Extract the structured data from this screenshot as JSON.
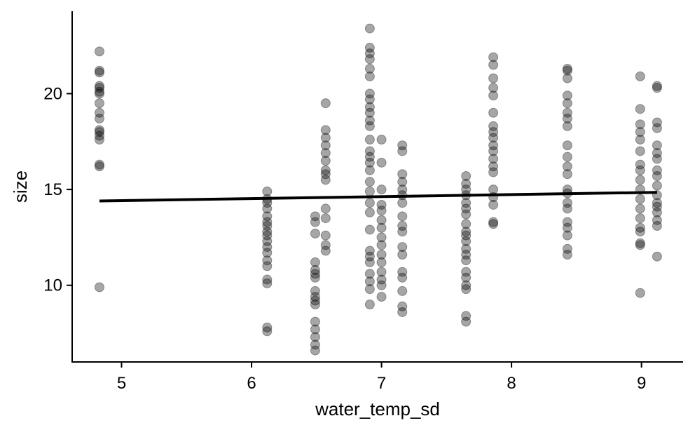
{
  "chart_data": {
    "type": "scatter",
    "title": "",
    "xlabel": "water_temp_sd",
    "ylabel": "size",
    "xlim": [
      4.62,
      9.32
    ],
    "ylim": [
      6.0,
      24.3
    ],
    "x_ticks": [
      5,
      6,
      7,
      8,
      9
    ],
    "y_ticks": [
      10,
      15,
      20
    ],
    "x_tick_labels": [
      "5",
      "6",
      "7",
      "8",
      "9"
    ],
    "y_tick_labels": [
      "10",
      "15",
      "20"
    ],
    "grid": false,
    "legend": "none",
    "point_color": "#000000",
    "point_alpha": 0.35,
    "groups": [
      {
        "x": 4.83,
        "values": [
          22.2,
          21.2,
          21.1,
          20.4,
          20.3,
          20.1,
          20.0,
          19.5,
          19.0,
          18.7,
          18.1,
          18.0,
          17.8,
          17.6,
          16.3,
          16.2,
          9.9
        ]
      },
      {
        "x": 6.12,
        "values": [
          14.9,
          14.5,
          14.3,
          14.0,
          13.6,
          13.3,
          13.1,
          12.8,
          12.6,
          12.3,
          12.0,
          11.7,
          11.3,
          11.0,
          10.3,
          10.1,
          7.8,
          7.6
        ]
      },
      {
        "x": 6.49,
        "values": [
          13.6,
          13.3,
          12.7,
          11.2,
          10.8,
          10.6,
          10.4,
          9.7,
          9.4,
          9.2,
          9.0,
          8.1,
          7.7,
          7.3,
          6.9,
          6.6
        ]
      },
      {
        "x": 6.57,
        "values": [
          19.5,
          18.1,
          17.7,
          17.3,
          16.9,
          16.5,
          16.0,
          15.8,
          15.5,
          14.0,
          13.5,
          12.6,
          12.1,
          11.8
        ]
      },
      {
        "x": 6.91,
        "values": [
          23.4,
          22.4,
          22.1,
          21.8,
          21.3,
          20.9,
          20.0,
          19.7,
          19.3,
          19.0,
          18.6,
          18.3,
          17.6,
          17.0,
          16.7,
          16.4,
          16.0,
          15.4,
          14.9,
          14.3,
          13.8,
          12.9,
          11.8,
          11.5,
          11.2,
          10.6,
          10.2,
          9.8,
          9.0
        ]
      },
      {
        "x": 7.0,
        "values": [
          17.6,
          16.4,
          15.0,
          14.2,
          13.9,
          13.4,
          13.0,
          12.5,
          12.1,
          11.6,
          11.2,
          10.7,
          10.3,
          10.0,
          9.4
        ]
      },
      {
        "x": 7.16,
        "values": [
          17.3,
          17.0,
          15.8,
          15.4,
          15.0,
          14.7,
          14.3,
          13.6,
          13.1,
          12.8,
          12.0,
          11.6,
          10.7,
          10.4,
          9.7,
          8.9,
          8.6
        ]
      },
      {
        "x": 7.65,
        "values": [
          15.7,
          15.3,
          15.0,
          14.7,
          14.3,
          14.0,
          13.7,
          13.2,
          12.8,
          12.6,
          12.3,
          11.9,
          11.6,
          11.3,
          10.7,
          10.4,
          10.0,
          9.8,
          8.4,
          8.1
        ]
      },
      {
        "x": 7.86,
        "values": [
          21.9,
          21.5,
          20.8,
          20.3,
          19.9,
          19.0,
          18.3,
          18.0,
          17.7,
          17.3,
          17.0,
          16.6,
          16.2,
          15.9,
          15.0,
          14.6,
          14.2,
          13.3,
          13.2
        ]
      },
      {
        "x": 8.43,
        "values": [
          21.3,
          21.2,
          20.8,
          19.9,
          19.5,
          19.0,
          18.7,
          18.3,
          17.3,
          16.7,
          16.2,
          15.8,
          15.0,
          14.8,
          14.3,
          14.0,
          13.3,
          13.0,
          12.6,
          11.9,
          11.6
        ]
      },
      {
        "x": 8.99,
        "values": [
          20.9,
          19.2,
          18.4,
          18.0,
          17.6,
          17.0,
          16.3,
          16.0,
          15.5,
          15.0,
          14.5,
          14.0,
          13.5,
          13.0,
          12.8,
          12.2,
          12.1,
          9.6
        ]
      },
      {
        "x": 9.12,
        "values": [
          20.4,
          20.3,
          18.5,
          18.2,
          17.3,
          16.9,
          16.6,
          16.0,
          15.7,
          15.2,
          14.7,
          14.3,
          14.1,
          13.8,
          13.4,
          13.1,
          11.5
        ]
      }
    ],
    "trend_line": {
      "x": [
        4.83,
        9.12
      ],
      "y": [
        14.4,
        14.85
      ]
    }
  }
}
